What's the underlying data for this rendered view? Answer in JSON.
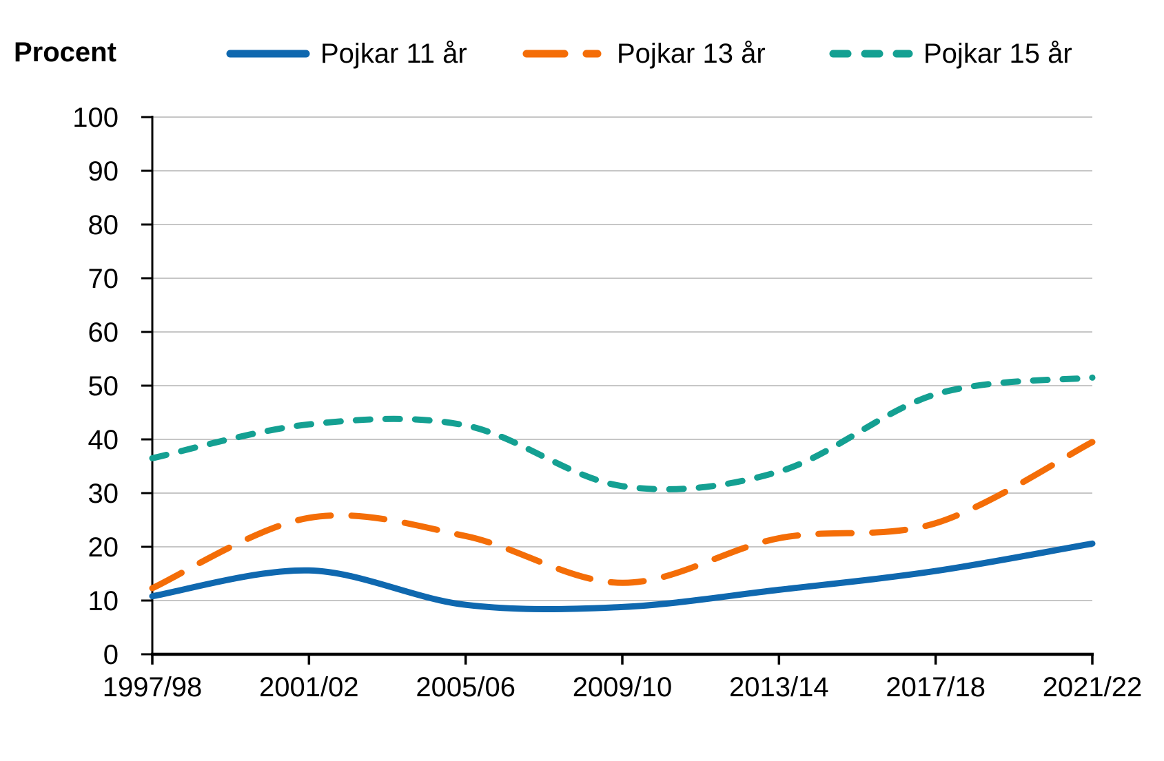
{
  "header": {
    "axis_title": "Procent"
  },
  "chart_data": {
    "type": "line",
    "title": "",
    "ylabel": "Procent",
    "xlabel": "",
    "categories": [
      "1997/98",
      "2001/02",
      "2005/06",
      "2009/10",
      "2013/14",
      "2017/18",
      "2021/22"
    ],
    "series": [
      {
        "name": "Pojkar 11 år",
        "color": "#0F68AF",
        "style": "solid",
        "values": [
          10.8,
          15.6,
          9.2,
          8.8,
          12.0,
          15.5,
          20.6
        ]
      },
      {
        "name": "Pojkar 13 år",
        "color": "#F46D07",
        "style": "long-dash",
        "values": [
          12.3,
          25.4,
          22.0,
          13.3,
          21.6,
          24.4,
          39.5
        ]
      },
      {
        "name": "Pojkar 15 år",
        "color": "#14A092",
        "style": "short-dash",
        "values": [
          36.5,
          42.8,
          42.6,
          31.3,
          34.0,
          48.4,
          51.5
        ]
      }
    ],
    "ylim": [
      0,
      100
    ],
    "y_ticks": [
      0,
      10,
      20,
      30,
      40,
      50,
      60,
      70,
      80,
      90,
      100
    ],
    "grid": "horizontal",
    "gridline_color": "#b3b3b3",
    "axis_color": "#000000",
    "legend_position": "top"
  }
}
